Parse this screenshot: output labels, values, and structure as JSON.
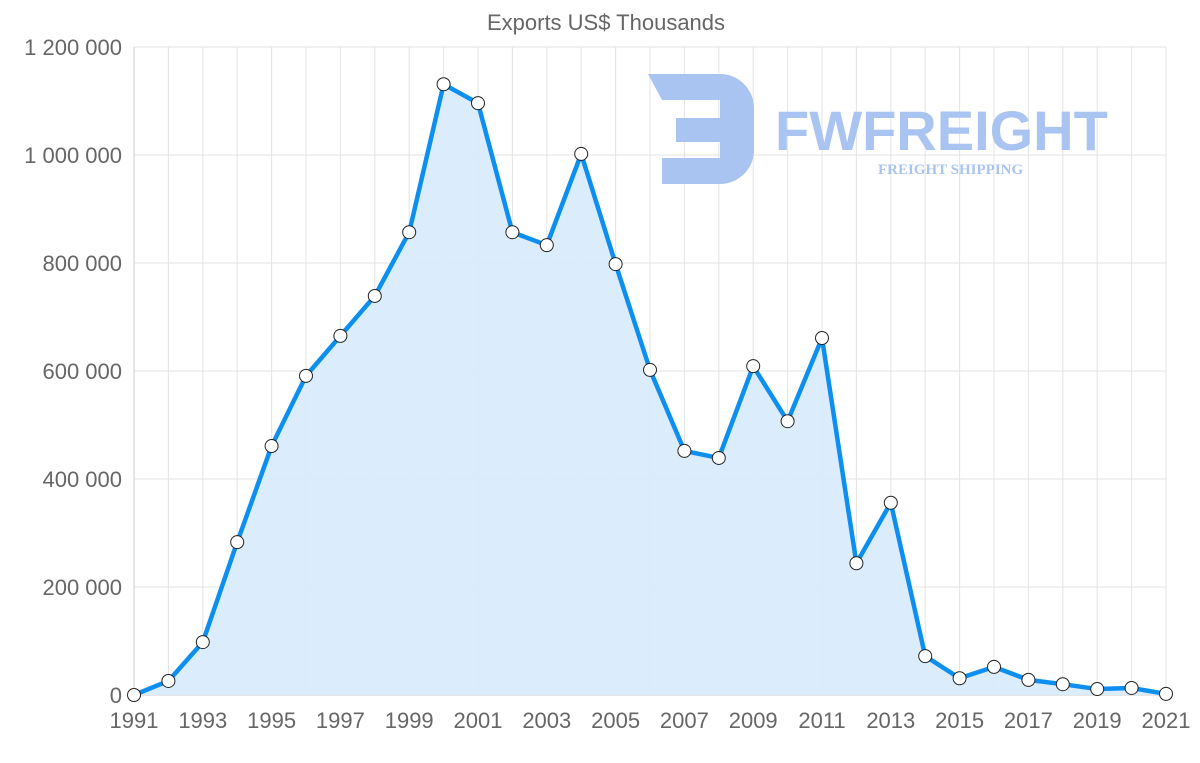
{
  "chart_data": {
    "type": "line",
    "title": "Exports US$ Thousands",
    "xlabel": "",
    "ylabel": "",
    "ylim": [
      0,
      1200000
    ],
    "yticks": [
      "0",
      "200 000",
      "400 000",
      "600 000",
      "800 000",
      "1 000 000",
      "1 200 000"
    ],
    "ytick_values": [
      0,
      200000,
      400000,
      600000,
      800000,
      1000000,
      1200000
    ],
    "xticks": [
      "1991",
      "1993",
      "1995",
      "1997",
      "1999",
      "2001",
      "2003",
      "2005",
      "2007",
      "2009",
      "2011",
      "2013",
      "2015",
      "2017",
      "2019",
      "2021"
    ],
    "x": [
      1991,
      1992,
      1993,
      1994,
      1995,
      1996,
      1997,
      1998,
      1999,
      2000,
      2001,
      2002,
      2003,
      2004,
      2005,
      2006,
      2007,
      2008,
      2009,
      2010,
      2011,
      2012,
      2013,
      2014,
      2015,
      2016,
      2017,
      2018,
      2019,
      2020,
      2021
    ],
    "series": [
      {
        "name": "Exports US$ Thousands",
        "values": [
          0,
          26000,
          98000,
          283000,
          461000,
          591000,
          665000,
          739000,
          857000,
          1131000,
          1096000,
          857000,
          833000,
          1002000,
          798000,
          602000,
          452000,
          439000,
          609000,
          507000,
          661000,
          244000,
          356000,
          72000,
          31000,
          52000,
          28000,
          20000,
          11000,
          13000,
          2000
        ],
        "color": "#0d8ff0",
        "fill": "#d9ecfc"
      }
    ],
    "grid": true,
    "legend": "none"
  },
  "watermark": {
    "brand": "FWFREIGHT",
    "tagline": "FREIGHT SHIPPING",
    "color": "#a9c4f0"
  }
}
